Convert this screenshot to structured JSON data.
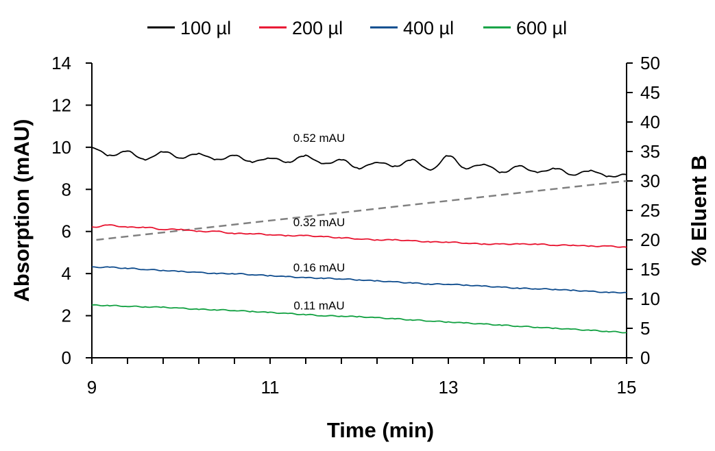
{
  "chart_data": {
    "type": "line",
    "title": "",
    "xlabel": "Time (min)",
    "ylabel": "Absorption (mAU)",
    "y2label": "% Eluent B",
    "xlim": [
      9,
      15
    ],
    "ylim": [
      0,
      14
    ],
    "y2lim": [
      0,
      50
    ],
    "xticks": [
      "9",
      "11",
      "13",
      "15"
    ],
    "yticks": [
      "0",
      "2",
      "4",
      "6",
      "8",
      "10",
      "12",
      "14"
    ],
    "y2ticks": [
      "0",
      "5",
      "10",
      "15",
      "20",
      "25",
      "30",
      "35",
      "40",
      "45",
      "50"
    ],
    "grid": false,
    "legend_position": "top",
    "x": [
      9.0,
      9.2,
      9.4,
      9.6,
      9.8,
      10.0,
      10.2,
      10.4,
      10.6,
      10.8,
      11.0,
      11.2,
      11.4,
      11.6,
      11.8,
      12.0,
      12.2,
      12.4,
      12.6,
      12.8,
      13.0,
      13.2,
      13.4,
      13.6,
      13.8,
      14.0,
      14.2,
      14.4,
      14.6,
      14.8,
      15.0
    ],
    "series": [
      {
        "name": "100 µl",
        "color": "#000000",
        "annotation": "0.52 mAU",
        "values": [
          10.0,
          9.6,
          9.8,
          9.4,
          9.8,
          9.5,
          9.7,
          9.4,
          9.6,
          9.3,
          9.5,
          9.3,
          9.6,
          9.2,
          9.4,
          9.0,
          9.3,
          9.1,
          9.4,
          8.9,
          9.6,
          9.0,
          9.2,
          8.8,
          9.1,
          8.8,
          9.0,
          8.7,
          8.9,
          8.6,
          8.7
        ]
      },
      {
        "name": "200 µl",
        "color": "#e8112d",
        "annotation": "0.32 mAU",
        "values": [
          6.2,
          6.3,
          6.2,
          6.2,
          6.1,
          6.1,
          6.0,
          6.0,
          5.9,
          5.9,
          5.85,
          5.8,
          5.8,
          5.75,
          5.7,
          5.65,
          5.6,
          5.6,
          5.55,
          5.5,
          5.5,
          5.45,
          5.4,
          5.4,
          5.4,
          5.4,
          5.35,
          5.35,
          5.3,
          5.3,
          5.25
        ]
      },
      {
        "name": "400 µl",
        "color": "#0c4a8c",
        "annotation": "0.16 mAU",
        "values": [
          4.3,
          4.3,
          4.25,
          4.2,
          4.15,
          4.1,
          4.05,
          4.0,
          4.0,
          3.95,
          3.9,
          3.85,
          3.8,
          3.78,
          3.75,
          3.7,
          3.65,
          3.6,
          3.55,
          3.5,
          3.5,
          3.45,
          3.4,
          3.35,
          3.3,
          3.28,
          3.25,
          3.2,
          3.15,
          3.1,
          3.1
        ]
      },
      {
        "name": "600 µl",
        "color": "#10a040",
        "annotation": "0.11 mAU",
        "values": [
          2.5,
          2.48,
          2.45,
          2.42,
          2.4,
          2.35,
          2.3,
          2.28,
          2.25,
          2.2,
          2.15,
          2.1,
          2.05,
          2.0,
          1.98,
          1.95,
          1.9,
          1.85,
          1.8,
          1.75,
          1.7,
          1.65,
          1.6,
          1.55,
          1.5,
          1.45,
          1.4,
          1.35,
          1.3,
          1.25,
          1.2
        ]
      }
    ],
    "gradient": {
      "axis": "y2",
      "style": "dashed",
      "color": "#808080",
      "x": [
        9.05,
        15.0
      ],
      "values": [
        20,
        30
      ]
    }
  }
}
